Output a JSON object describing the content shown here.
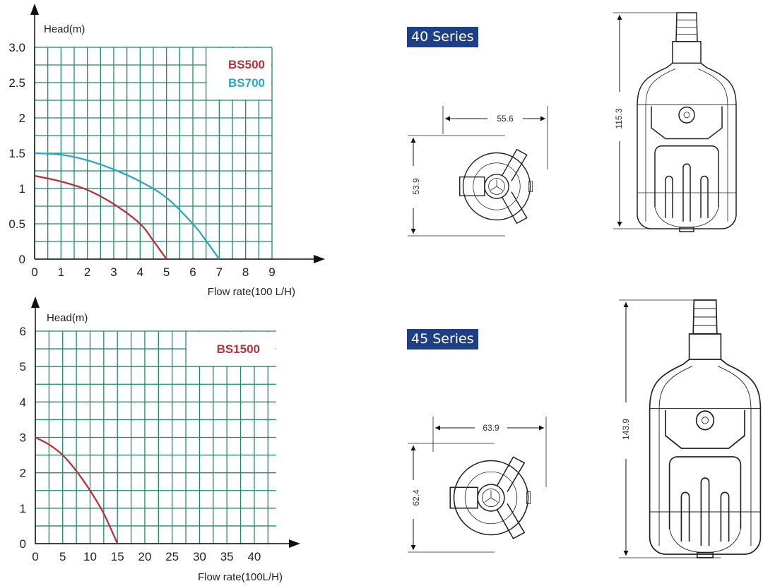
{
  "chart_data": [
    {
      "type": "line",
      "ylabel": "Head(m)",
      "xlabel": "Flow rate(100 L/H)",
      "xlim": [
        0,
        9
      ],
      "ylim": [
        0,
        3
      ],
      "x_ticks": [
        "0",
        "1",
        "2",
        "3",
        "4",
        "5",
        "6",
        "7",
        "8",
        "9"
      ],
      "y_ticks": [
        "0",
        "0.5",
        "1",
        "1.5",
        "2",
        "2.5",
        "3.0"
      ],
      "grid": true,
      "legend_position": "top-right",
      "series": [
        {
          "name": "BS500",
          "color": "#b8323a",
          "x": [
            0,
            1,
            2,
            3,
            4,
            4.5,
            5
          ],
          "y": [
            1.18,
            1.1,
            0.98,
            0.78,
            0.5,
            0.26,
            0
          ]
        },
        {
          "name": "BS700",
          "color": "#2aa7c4",
          "x": [
            0,
            1,
            2,
            3,
            4,
            5,
            6,
            6.5,
            7
          ],
          "y": [
            1.5,
            1.48,
            1.4,
            1.27,
            1.1,
            0.87,
            0.5,
            0.26,
            0
          ]
        }
      ]
    },
    {
      "type": "line",
      "ylabel": "Head(m)",
      "xlabel": "Flow rate(100L/H)",
      "xlim": [
        0,
        44
      ],
      "ylim": [
        0,
        6
      ],
      "x_ticks": [
        "0",
        "5",
        "10",
        "15",
        "20",
        "25",
        "30",
        "35",
        "40"
      ],
      "y_ticks": [
        "0",
        "1",
        "2",
        "3",
        "4",
        "5",
        "6"
      ],
      "grid": true,
      "legend_position": "top-right",
      "series": [
        {
          "name": "BS1500",
          "color": "#b8323a",
          "x": [
            0,
            2.5,
            5,
            7.5,
            10,
            12.5,
            15
          ],
          "y": [
            3,
            2.8,
            2.5,
            2.05,
            1.5,
            0.85,
            0
          ]
        }
      ]
    }
  ],
  "grid_color": "#1f8a6a",
  "drawings": {
    "series40": {
      "label": "40 Series",
      "width": "55.6",
      "depth": "53.9",
      "height": "115.3"
    },
    "series45": {
      "label": "45 Series",
      "width": "63.9",
      "depth": "62.4",
      "height": "143.9"
    },
    "badge_color": "#1e3f86"
  }
}
